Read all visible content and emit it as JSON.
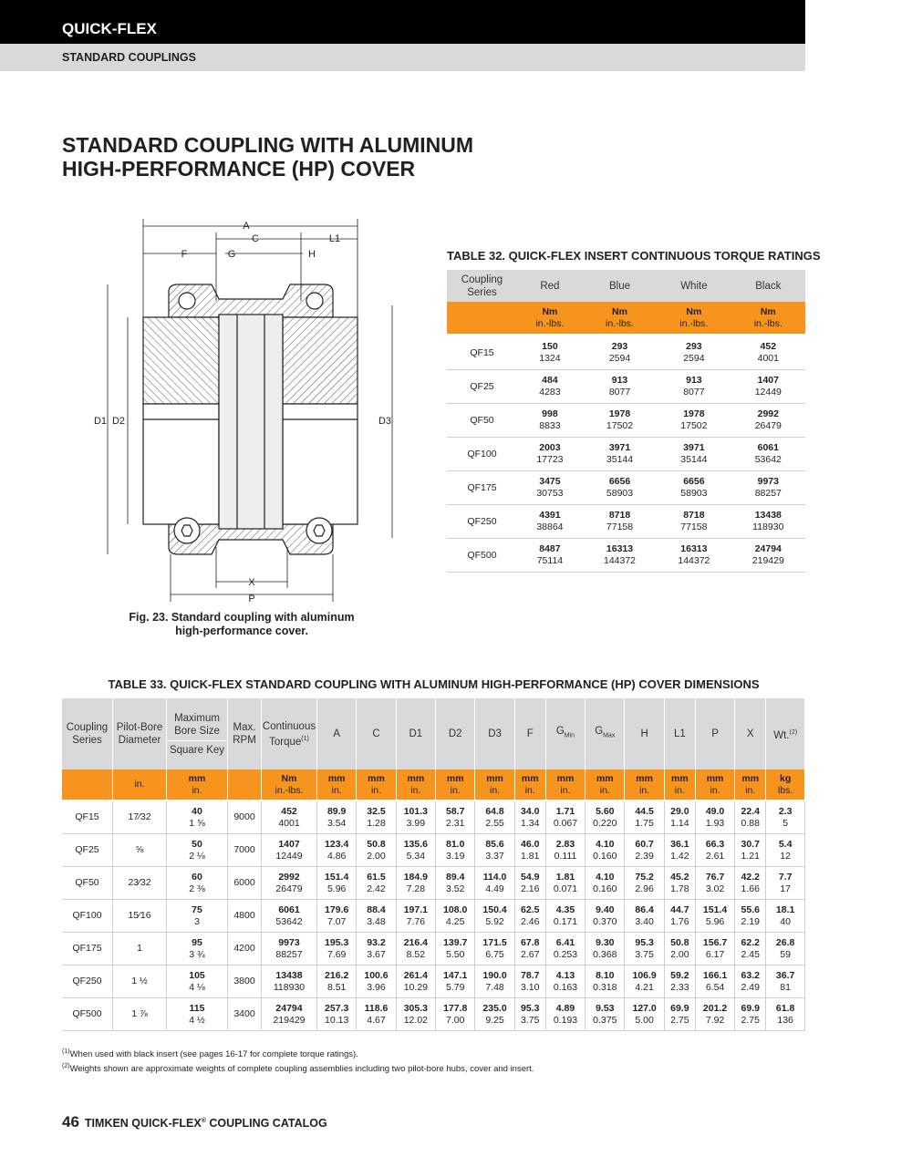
{
  "header": {
    "brand": "QUICK-FLEX",
    "section": "STANDARD COUPLINGS"
  },
  "title": {
    "line1": "STANDARD COUPLING WITH ALUMINUM",
    "line2": "HIGH-PERFORMANCE (HP) COVER"
  },
  "figure": {
    "labels": {
      "A": "A",
      "C": "C",
      "L1": "L1",
      "F": "F",
      "G": "G",
      "H": "H",
      "D1": "D1",
      "D2": "D2",
      "D3": "D3",
      "X": "X",
      "P": "P"
    },
    "caption": {
      "line1": "Fig. 23. Standard coupling with aluminum",
      "line2": "high-performance cover."
    }
  },
  "table32": {
    "title": "TABLE 32. QUICK-FLEX INSERT CONTINUOUS TORQUE RATINGS",
    "headers": [
      "Coupling Series",
      "Red",
      "Blue",
      "White",
      "Black"
    ],
    "units": [
      "Nm",
      "in.-lbs."
    ],
    "rows": [
      {
        "series": "QF15",
        "values": [
          [
            "150",
            "1324"
          ],
          [
            "293",
            "2594"
          ],
          [
            "293",
            "2594"
          ],
          [
            "452",
            "4001"
          ]
        ]
      },
      {
        "series": "QF25",
        "values": [
          [
            "484",
            "4283"
          ],
          [
            "913",
            "8077"
          ],
          [
            "913",
            "8077"
          ],
          [
            "1407",
            "12449"
          ]
        ]
      },
      {
        "series": "QF50",
        "values": [
          [
            "998",
            "8833"
          ],
          [
            "1978",
            "17502"
          ],
          [
            "1978",
            "17502"
          ],
          [
            "2992",
            "26479"
          ]
        ]
      },
      {
        "series": "QF100",
        "values": [
          [
            "2003",
            "17723"
          ],
          [
            "3971",
            "35144"
          ],
          [
            "3971",
            "35144"
          ],
          [
            "6061",
            "53642"
          ]
        ]
      },
      {
        "series": "QF175",
        "values": [
          [
            "3475",
            "30753"
          ],
          [
            "6656",
            "58903"
          ],
          [
            "6656",
            "58903"
          ],
          [
            "9973",
            "88257"
          ]
        ]
      },
      {
        "series": "QF250",
        "values": [
          [
            "4391",
            "38864"
          ],
          [
            "8718",
            "77158"
          ],
          [
            "8718",
            "77158"
          ],
          [
            "13438",
            "118930"
          ]
        ]
      },
      {
        "series": "QF500",
        "values": [
          [
            "8487",
            "75114"
          ],
          [
            "16313",
            "144372"
          ],
          [
            "16313",
            "144372"
          ],
          [
            "24794",
            "219429"
          ]
        ]
      }
    ]
  },
  "table33": {
    "title": "TABLE 33. QUICK-FLEX STANDARD COUPLING WITH ALUMINUM HIGH-PERFORMANCE (HP) COVER DIMENSIONS",
    "headers": {
      "series": "Coupling Series",
      "pilot": "Pilot-Bore Diameter",
      "bore": "Maximum Bore Size",
      "key": "Square Key",
      "rpm": "Max. RPM",
      "torque": {
        "label": "Continuous Torque",
        "sup": "(1)"
      },
      "dims": [
        {
          "label": "A"
        },
        {
          "label": "C"
        },
        {
          "label": "D1"
        },
        {
          "label": "D2"
        },
        {
          "label": "D3"
        },
        {
          "label": "F"
        },
        {
          "label": "G",
          "sub": "Min"
        },
        {
          "label": "G",
          "sub": "Max"
        },
        {
          "label": "H"
        },
        {
          "label": "L1"
        },
        {
          "label": "P"
        },
        {
          "label": "X"
        },
        {
          "label": "Wt.",
          "sup": "(2)"
        }
      ]
    },
    "units": {
      "pilot": "in.",
      "bore": [
        "mm",
        "in."
      ],
      "torque": [
        "Nm",
        "in.-lbs."
      ],
      "dims": [
        "mm",
        "in."
      ],
      "weight": [
        "kg",
        "lbs."
      ]
    },
    "rows": [
      {
        "series": "QF15",
        "pilot": "17⁄32",
        "bore": [
          "40",
          "1 ⅝"
        ],
        "rpm": "9000",
        "torque": [
          "452",
          "4001"
        ],
        "dims": [
          [
            "89.9",
            "3.54"
          ],
          [
            "32.5",
            "1.28"
          ],
          [
            "101.3",
            "3.99"
          ],
          [
            "58.7",
            "2.31"
          ],
          [
            "64.8",
            "2.55"
          ],
          [
            "34.0",
            "1.34"
          ],
          [
            "1.71",
            "0.067"
          ],
          [
            "5.60",
            "0.220"
          ],
          [
            "44.5",
            "1.75"
          ],
          [
            "29.0",
            "1.14"
          ],
          [
            "49.0",
            "1.93"
          ],
          [
            "22.4",
            "0.88"
          ],
          [
            "2.3",
            "5"
          ]
        ]
      },
      {
        "series": "QF25",
        "pilot": "⅝",
        "bore": [
          "50",
          "2 ⅛"
        ],
        "rpm": "7000",
        "torque": [
          "1407",
          "12449"
        ],
        "dims": [
          [
            "123.4",
            "4.86"
          ],
          [
            "50.8",
            "2.00"
          ],
          [
            "135.6",
            "5.34"
          ],
          [
            "81.0",
            "3.19"
          ],
          [
            "85.6",
            "3.37"
          ],
          [
            "46.0",
            "1.81"
          ],
          [
            "2.83",
            "0.111"
          ],
          [
            "4.10",
            "0.160"
          ],
          [
            "60.7",
            "2.39"
          ],
          [
            "36.1",
            "1.42"
          ],
          [
            "66.3",
            "2.61"
          ],
          [
            "30.7",
            "1.21"
          ],
          [
            "5.4",
            "12"
          ]
        ]
      },
      {
        "series": "QF50",
        "pilot": "23⁄32",
        "bore": [
          "60",
          "2 ⅜"
        ],
        "rpm": "6000",
        "torque": [
          "2992",
          "26479"
        ],
        "dims": [
          [
            "151.4",
            "5.96"
          ],
          [
            "61.5",
            "2.42"
          ],
          [
            "184.9",
            "7.28"
          ],
          [
            "89.4",
            "3.52"
          ],
          [
            "114.0",
            "4.49"
          ],
          [
            "54.9",
            "2.16"
          ],
          [
            "1.81",
            "0.071"
          ],
          [
            "4.10",
            "0.160"
          ],
          [
            "75.2",
            "2.96"
          ],
          [
            "45.2",
            "1.78"
          ],
          [
            "76.7",
            "3.02"
          ],
          [
            "42.2",
            "1.66"
          ],
          [
            "7.7",
            "17"
          ]
        ]
      },
      {
        "series": "QF100",
        "pilot": "15⁄16",
        "bore": [
          "75",
          "3"
        ],
        "rpm": "4800",
        "torque": [
          "6061",
          "53642"
        ],
        "dims": [
          [
            "179.6",
            "7.07"
          ],
          [
            "88.4",
            "3.48"
          ],
          [
            "197.1",
            "7.76"
          ],
          [
            "108.0",
            "4.25"
          ],
          [
            "150.4",
            "5.92"
          ],
          [
            "62.5",
            "2.46"
          ],
          [
            "4.35",
            "0.171"
          ],
          [
            "9.40",
            "0.370"
          ],
          [
            "86.4",
            "3.40"
          ],
          [
            "44.7",
            "1.76"
          ],
          [
            "151.4",
            "5.96"
          ],
          [
            "55.6",
            "2.19"
          ],
          [
            "18.1",
            "40"
          ]
        ]
      },
      {
        "series": "QF175",
        "pilot": "1",
        "bore": [
          "95",
          "3 ¾"
        ],
        "rpm": "4200",
        "torque": [
          "9973",
          "88257"
        ],
        "dims": [
          [
            "195.3",
            "7.69"
          ],
          [
            "93.2",
            "3.67"
          ],
          [
            "216.4",
            "8.52"
          ],
          [
            "139.7",
            "5.50"
          ],
          [
            "171.5",
            "6.75"
          ],
          [
            "67.8",
            "2.67"
          ],
          [
            "6.41",
            "0.253"
          ],
          [
            "9.30",
            "0.368"
          ],
          [
            "95.3",
            "3.75"
          ],
          [
            "50.8",
            "2.00"
          ],
          [
            "156.7",
            "6.17"
          ],
          [
            "62.2",
            "2.45"
          ],
          [
            "26.8",
            "59"
          ]
        ]
      },
      {
        "series": "QF250",
        "pilot": "1 ½",
        "bore": [
          "105",
          "4 ⅛"
        ],
        "rpm": "3800",
        "torque": [
          "13438",
          "118930"
        ],
        "dims": [
          [
            "216.2",
            "8.51"
          ],
          [
            "100.6",
            "3.96"
          ],
          [
            "261.4",
            "10.29"
          ],
          [
            "147.1",
            "5.79"
          ],
          [
            "190.0",
            "7.48"
          ],
          [
            "78.7",
            "3.10"
          ],
          [
            "4.13",
            "0.163"
          ],
          [
            "8.10",
            "0.318"
          ],
          [
            "106.9",
            "4.21"
          ],
          [
            "59.2",
            "2.33"
          ],
          [
            "166.1",
            "6.54"
          ],
          [
            "63.2",
            "2.49"
          ],
          [
            "36.7",
            "81"
          ]
        ]
      },
      {
        "series": "QF500",
        "pilot": "1 ⅞",
        "bore": [
          "115",
          "4 ½"
        ],
        "rpm": "3400",
        "torque": [
          "24794",
          "219429"
        ],
        "dims": [
          [
            "257.3",
            "10.13"
          ],
          [
            "118.6",
            "4.67"
          ],
          [
            "305.3",
            "12.02"
          ],
          [
            "177.8",
            "7.00"
          ],
          [
            "235.0",
            "9.25"
          ],
          [
            "95.3",
            "3.75"
          ],
          [
            "4.89",
            "0.193"
          ],
          [
            "9.53",
            "0.375"
          ],
          [
            "127.0",
            "5.00"
          ],
          [
            "69.9",
            "2.75"
          ],
          [
            "201.2",
            "7.92"
          ],
          [
            "69.9",
            "2.75"
          ],
          [
            "61.8",
            "136"
          ]
        ]
      }
    ]
  },
  "footnotes": [
    {
      "mark": "(1)",
      "text": "When used with black insert (see pages 16-17 for complete torque ratings)."
    },
    {
      "mark": "(2)",
      "text": "Weights shown are approximate weights of complete coupling assemblies including two pilot-bore hubs, cover and insert."
    }
  ],
  "footer": {
    "page": "46",
    "text": "TIMKEN QUICK-FLEX",
    "reg": "®",
    "text2": " COUPLING CATALOG"
  }
}
